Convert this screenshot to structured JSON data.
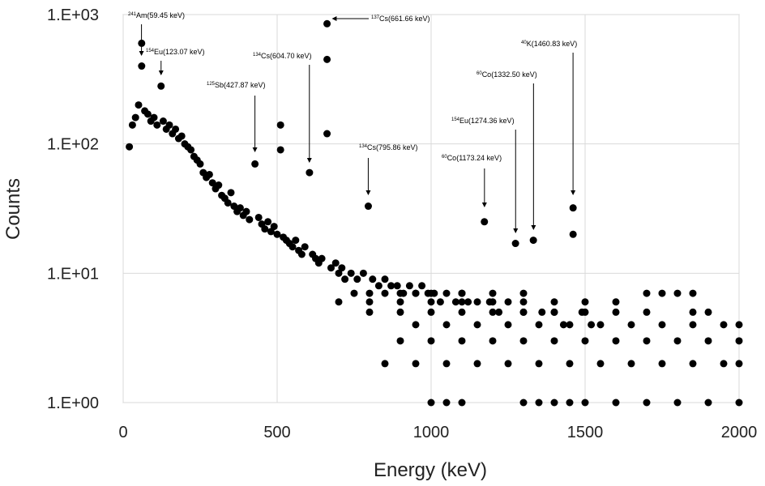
{
  "chart_data": {
    "type": "scatter",
    "xlabel": "Energy (keV)",
    "ylabel": "Counts",
    "xlim": [
      0,
      2000
    ],
    "xticks": [
      0,
      500,
      1000,
      1500,
      2000
    ],
    "ylim": [
      1,
      1000
    ],
    "yscale": "log",
    "yticks": [
      {
        "value": 1,
        "label": "1.E+00"
      },
      {
        "value": 10,
        "label": "1.E+01"
      },
      {
        "value": 100,
        "label": "1.E+02"
      },
      {
        "value": 1000,
        "label": "1.E+03"
      }
    ],
    "grid": true,
    "color": "#000000",
    "x": [
      20,
      30,
      40,
      50,
      60,
      60,
      70,
      80,
      90,
      100,
      110,
      123,
      130,
      140,
      150,
      160,
      170,
      180,
      190,
      200,
      210,
      220,
      230,
      240,
      250,
      260,
      270,
      280,
      290,
      300,
      310,
      320,
      330,
      340,
      350,
      360,
      370,
      380,
      390,
      400,
      410,
      428,
      440,
      450,
      460,
      470,
      480,
      490,
      500,
      511,
      511,
      520,
      530,
      540,
      550,
      560,
      570,
      580,
      590,
      605,
      615,
      625,
      635,
      645,
      662,
      662,
      662,
      675,
      690,
      700,
      710,
      720,
      740,
      760,
      780,
      796,
      810,
      830,
      850,
      870,
      890,
      910,
      930,
      950,
      970,
      990,
      1010,
      1030,
      1050,
      1080,
      1100,
      1120,
      1150,
      1173,
      1190,
      1220,
      1250,
      1274,
      1300,
      1332,
      1360,
      1400,
      1430,
      1461,
      1461,
      1490,
      1520,
      750,
      800,
      850,
      900,
      950,
      1000,
      1100,
      1200,
      1300,
      1700,
      1750,
      1800,
      1850,
      700,
      800,
      900,
      1000,
      1100,
      1200,
      1300,
      1400,
      1500,
      1600,
      800,
      900,
      1000,
      1100,
      1200,
      1300,
      1400,
      1500,
      1600,
      1700,
      1850,
      1900,
      950,
      1050,
      1150,
      1250,
      1350,
      1450,
      1550,
      1650,
      1750,
      1850,
      1950,
      2000,
      900,
      1000,
      1100,
      1200,
      1300,
      1400,
      1500,
      1600,
      1700,
      1800,
      1900,
      2000,
      850,
      950,
      1050,
      1150,
      1250,
      1350,
      1450,
      1550,
      1650,
      1750,
      1850,
      1950,
      2000,
      1000,
      1050,
      1100,
      1300,
      1350,
      1400,
      1500,
      1600,
      1700,
      1800,
      1900,
      2000,
      1450
    ],
    "values": [
      95,
      140,
      160,
      200,
      600,
      400,
      180,
      170,
      150,
      160,
      140,
      280,
      150,
      130,
      140,
      120,
      130,
      110,
      115,
      100,
      95,
      90,
      80,
      75,
      70,
      60,
      55,
      58,
      50,
      45,
      48,
      40,
      38,
      35,
      42,
      33,
      30,
      32,
      28,
      30,
      26,
      70,
      27,
      24,
      22,
      25,
      21,
      23,
      20,
      140,
      90,
      19,
      18,
      17,
      16,
      18,
      15,
      14,
      16,
      60,
      14,
      13,
      12,
      13,
      850,
      450,
      120,
      11,
      12,
      10,
      11,
      9,
      10,
      9,
      10,
      33,
      9,
      8,
      9,
      8,
      8,
      7,
      8,
      7,
      8,
      7,
      7,
      6,
      7,
      6,
      7,
      6,
      6,
      25,
      6,
      5,
      6,
      17,
      5,
      18,
      5,
      5,
      4,
      32,
      20,
      5,
      4,
      7,
      7,
      7,
      7,
      7,
      7,
      7,
      7,
      7,
      7,
      7,
      7,
      7,
      6,
      6,
      6,
      6,
      6,
      6,
      6,
      6,
      6,
      6,
      5,
      5,
      5,
      5,
      5,
      5,
      5,
      5,
      5,
      5,
      5,
      5,
      4,
      4,
      4,
      4,
      4,
      4,
      4,
      4,
      4,
      4,
      4,
      4,
      3,
      3,
      3,
      3,
      3,
      3,
      3,
      3,
      3,
      3,
      3,
      3,
      2,
      2,
      2,
      2,
      2,
      2,
      2,
      2,
      2,
      2,
      2,
      2,
      2,
      1,
      1,
      1,
      1,
      1,
      1,
      1,
      1,
      1,
      1,
      1,
      1,
      1
    ],
    "annotations": [
      {
        "mass": "241",
        "text": "Am(59.45 keV)",
        "energy": 59.45
      },
      {
        "mass": "154",
        "text": "Eu(123.07 keV)",
        "energy": 123.07
      },
      {
        "mass": "125",
        "text": "Sb(427.87 keV)",
        "energy": 427.87
      },
      {
        "mass": "134",
        "text": "Cs(604.70 keV)",
        "energy": 604.7
      },
      {
        "mass": "137",
        "text": "Cs(661.66 keV)",
        "energy": 661.66
      },
      {
        "mass": "134",
        "text": "Cs(795.86 keV)",
        "energy": 795.86
      },
      {
        "mass": "60",
        "text": "Co(1173.24 keV)",
        "energy": 1173.24
      },
      {
        "mass": "154",
        "text": "Eu(1274.36 keV)",
        "energy": 1274.36
      },
      {
        "mass": "60",
        "text": "Co(1332.50 keV)",
        "energy": 1332.5
      },
      {
        "mass": "40",
        "text": "K(1460.83 keV)",
        "energy": 1460.83
      }
    ]
  }
}
